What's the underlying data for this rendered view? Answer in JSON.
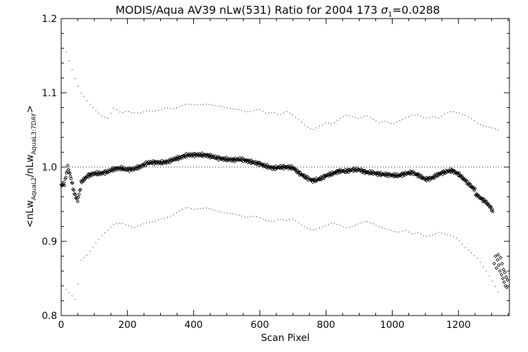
{
  "chart_data": {
    "type": "scatter",
    "title_main": "MODIS/Aqua AV39 nLw(531) Ratio for 2004 173 ",
    "title_sigma": "σ",
    "title_sigma_sub": "1",
    "title_value": "=0.0288",
    "xlabel": "Scan Pixel",
    "ylabel_parts": {
      "open": "<nLw",
      "sub1": "AquaL2",
      "mid": "/nLw",
      "sub2": "AquaL3:7DAY",
      "close": ">"
    },
    "xlim": [
      0,
      1354
    ],
    "ylim": [
      0.8,
      1.2
    ],
    "x_ticks": [
      0,
      200,
      400,
      600,
      800,
      1000,
      1200
    ],
    "x_tick_labels": [
      "0",
      "200",
      "400",
      "600",
      "800",
      "1000",
      "1200"
    ],
    "y_ticks": [
      0.8,
      0.9,
      1.0,
      1.1,
      1.2
    ],
    "y_tick_labels": [
      "0.8",
      "0.9",
      "1.0",
      "1.1",
      "1.2"
    ],
    "reference_line": 1.0,
    "mean_curve": [
      [
        0,
        0.975
      ],
      [
        10,
        0.98
      ],
      [
        20,
        1.005
      ],
      [
        30,
        0.99
      ],
      [
        40,
        0.97
      ],
      [
        50,
        0.96
      ],
      [
        60,
        0.98
      ],
      [
        80,
        0.988
      ],
      [
        100,
        0.99
      ],
      [
        120,
        0.99
      ],
      [
        140,
        0.993
      ],
      [
        160,
        0.998
      ],
      [
        180,
        1.0
      ],
      [
        200,
        0.998
      ],
      [
        220,
        0.998
      ],
      [
        240,
        1.0
      ],
      [
        260,
        1.004
      ],
      [
        280,
        1.005
      ],
      [
        300,
        1.006
      ],
      [
        320,
        1.008
      ],
      [
        340,
        1.012
      ],
      [
        360,
        1.014
      ],
      [
        380,
        1.016
      ],
      [
        400,
        1.015
      ],
      [
        420,
        1.015
      ],
      [
        440,
        1.015
      ],
      [
        460,
        1.014
      ],
      [
        480,
        1.013
      ],
      [
        500,
        1.012
      ],
      [
        520,
        1.01
      ],
      [
        540,
        1.01
      ],
      [
        560,
        1.007
      ],
      [
        580,
        1.005
      ],
      [
        600,
        1.004
      ],
      [
        620,
        1.002
      ],
      [
        640,
        1.0
      ],
      [
        660,
        1.001
      ],
      [
        680,
        1.0
      ],
      [
        700,
        0.998
      ],
      [
        720,
        0.99
      ],
      [
        740,
        0.985
      ],
      [
        760,
        0.982
      ],
      [
        780,
        0.985
      ],
      [
        800,
        0.99
      ],
      [
        820,
        0.992
      ],
      [
        840,
        0.994
      ],
      [
        860,
        0.993
      ],
      [
        880,
        0.995
      ],
      [
        900,
        0.996
      ],
      [
        920,
        0.994
      ],
      [
        940,
        0.994
      ],
      [
        960,
        0.992
      ],
      [
        980,
        0.99
      ],
      [
        1000,
        0.988
      ],
      [
        1020,
        0.987
      ],
      [
        1040,
        0.99
      ],
      [
        1060,
        0.993
      ],
      [
        1080,
        0.99
      ],
      [
        1100,
        0.985
      ],
      [
        1120,
        0.986
      ],
      [
        1140,
        0.99
      ],
      [
        1160,
        0.992
      ],
      [
        1180,
        0.994
      ],
      [
        1200,
        0.99
      ],
      [
        1220,
        0.983
      ],
      [
        1240,
        0.975
      ],
      [
        1260,
        0.966
      ],
      [
        1280,
        0.955
      ],
      [
        1290,
        0.948
      ],
      [
        1300,
        0.94
      ],
      [
        1305,
        0.935
      ]
    ],
    "upper_curve": [
      [
        15,
        1.155
      ],
      [
        30,
        1.135
      ],
      [
        45,
        1.115
      ],
      [
        60,
        1.1
      ],
      [
        80,
        1.088
      ],
      [
        100,
        1.078
      ],
      [
        120,
        1.07
      ],
      [
        140,
        1.065
      ],
      [
        160,
        1.08
      ],
      [
        180,
        1.073
      ],
      [
        200,
        1.075
      ],
      [
        220,
        1.073
      ],
      [
        240,
        1.073
      ],
      [
        260,
        1.076
      ],
      [
        280,
        1.075
      ],
      [
        300,
        1.077
      ],
      [
        320,
        1.08
      ],
      [
        340,
        1.078
      ],
      [
        360,
        1.082
      ],
      [
        380,
        1.085
      ],
      [
        400,
        1.084
      ],
      [
        420,
        1.084
      ],
      [
        440,
        1.085
      ],
      [
        460,
        1.083
      ],
      [
        480,
        1.082
      ],
      [
        500,
        1.08
      ],
      [
        520,
        1.078
      ],
      [
        540,
        1.077
      ],
      [
        560,
        1.074
      ],
      [
        580,
        1.076
      ],
      [
        600,
        1.078
      ],
      [
        620,
        1.072
      ],
      [
        640,
        1.074
      ],
      [
        660,
        1.07
      ],
      [
        680,
        1.075
      ],
      [
        700,
        1.07
      ],
      [
        720,
        1.063
      ],
      [
        740,
        1.055
      ],
      [
        760,
        1.05
      ],
      [
        780,
        1.055
      ],
      [
        800,
        1.06
      ],
      [
        820,
        1.058
      ],
      [
        840,
        1.065
      ],
      [
        860,
        1.07
      ],
      [
        880,
        1.068
      ],
      [
        900,
        1.065
      ],
      [
        920,
        1.07
      ],
      [
        940,
        1.065
      ],
      [
        960,
        1.06
      ],
      [
        980,
        1.062
      ],
      [
        1000,
        1.058
      ],
      [
        1020,
        1.062
      ],
      [
        1040,
        1.066
      ],
      [
        1060,
        1.07
      ],
      [
        1080,
        1.07
      ],
      [
        1100,
        1.065
      ],
      [
        1120,
        1.068
      ],
      [
        1140,
        1.066
      ],
      [
        1160,
        1.072
      ],
      [
        1180,
        1.075
      ],
      [
        1200,
        1.073
      ],
      [
        1220,
        1.07
      ],
      [
        1240,
        1.065
      ],
      [
        1260,
        1.058
      ],
      [
        1280,
        1.055
      ],
      [
        1300,
        1.053
      ],
      [
        1320,
        1.05
      ]
    ],
    "lower_curve": [
      [
        15,
        0.835
      ],
      [
        30,
        0.828
      ],
      [
        45,
        0.82
      ],
      [
        60,
        0.875
      ],
      [
        80,
        0.882
      ],
      [
        100,
        0.895
      ],
      [
        120,
        0.906
      ],
      [
        140,
        0.915
      ],
      [
        160,
        0.923
      ],
      [
        180,
        0.925
      ],
      [
        200,
        0.922
      ],
      [
        220,
        0.918
      ],
      [
        240,
        0.922
      ],
      [
        260,
        0.925
      ],
      [
        280,
        0.926
      ],
      [
        300,
        0.93
      ],
      [
        320,
        0.932
      ],
      [
        340,
        0.936
      ],
      [
        360,
        0.942
      ],
      [
        380,
        0.946
      ],
      [
        400,
        0.943
      ],
      [
        420,
        0.944
      ],
      [
        440,
        0.945
      ],
      [
        460,
        0.942
      ],
      [
        480,
        0.94
      ],
      [
        500,
        0.938
      ],
      [
        520,
        0.937
      ],
      [
        540,
        0.935
      ],
      [
        560,
        0.932
      ],
      [
        580,
        0.934
      ],
      [
        600,
        0.932
      ],
      [
        620,
        0.928
      ],
      [
        640,
        0.926
      ],
      [
        660,
        0.93
      ],
      [
        680,
        0.928
      ],
      [
        700,
        0.93
      ],
      [
        720,
        0.924
      ],
      [
        740,
        0.918
      ],
      [
        760,
        0.915
      ],
      [
        780,
        0.918
      ],
      [
        800,
        0.921
      ],
      [
        820,
        0.925
      ],
      [
        840,
        0.922
      ],
      [
        860,
        0.918
      ],
      [
        880,
        0.92
      ],
      [
        900,
        0.924
      ],
      [
        920,
        0.927
      ],
      [
        940,
        0.924
      ],
      [
        960,
        0.92
      ],
      [
        980,
        0.917
      ],
      [
        1000,
        0.914
      ],
      [
        1020,
        0.912
      ],
      [
        1040,
        0.915
      ],
      [
        1060,
        0.91
      ],
      [
        1080,
        0.912
      ],
      [
        1100,
        0.906
      ],
      [
        1120,
        0.908
      ],
      [
        1140,
        0.912
      ],
      [
        1160,
        0.91
      ],
      [
        1180,
        0.907
      ],
      [
        1200,
        0.903
      ],
      [
        1220,
        0.892
      ],
      [
        1240,
        0.884
      ],
      [
        1260,
        0.876
      ],
      [
        1280,
        0.862
      ],
      [
        1300,
        0.848
      ],
      [
        1320,
        0.832
      ]
    ],
    "tail_scatter": [
      [
        1308,
        0.87
      ],
      [
        1312,
        0.88
      ],
      [
        1315,
        0.864
      ],
      [
        1318,
        0.875
      ],
      [
        1320,
        0.882
      ],
      [
        1322,
        0.868
      ],
      [
        1325,
        0.86
      ],
      [
        1327,
        0.878
      ],
      [
        1330,
        0.855
      ],
      [
        1332,
        0.87
      ],
      [
        1334,
        0.85
      ],
      [
        1336,
        0.862
      ],
      [
        1338,
        0.845
      ],
      [
        1340,
        0.858
      ],
      [
        1342,
        0.84
      ],
      [
        1344,
        0.852
      ],
      [
        1346,
        0.838
      ],
      [
        1348,
        0.848
      ]
    ]
  }
}
